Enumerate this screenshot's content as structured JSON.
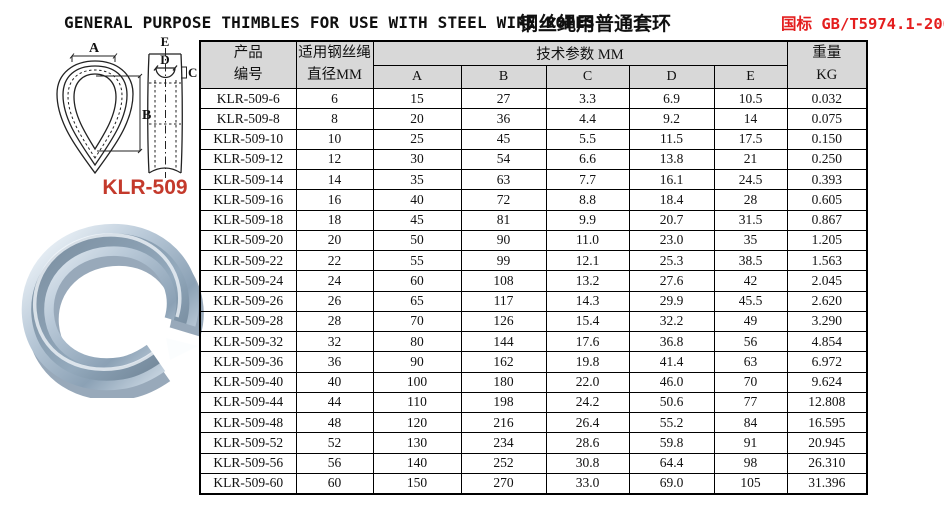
{
  "title": {
    "english": "GENERAL PURPOSE THIMBLES FOR USE WITH STEEL WIRE ROPES",
    "chinese": "钢丝绳用普通套环",
    "standard": "国标 GB/T5974.1-2006",
    "standard_color": "#e41e1e"
  },
  "figure": {
    "model_label": "KLR-509",
    "model_color": "#c43a2c",
    "dims": {
      "a": "A",
      "b": "B",
      "c": "C",
      "d": "D",
      "e": "E"
    }
  },
  "table": {
    "header": {
      "product_line1": "产品",
      "product_line2": "编号",
      "diameter_line1": "适用钢丝绳",
      "diameter_line2": "直径MM",
      "tech_params": "技术参数 MM",
      "param_cols": [
        "A",
        "B",
        "C",
        "D",
        "E"
      ],
      "weight_line1": "重量",
      "weight_line2": "KG",
      "header_bg": "#d8d8d8"
    },
    "rows": [
      [
        "KLR-509-6",
        "6",
        "15",
        "27",
        "3.3",
        "6.9",
        "10.5",
        "0.032"
      ],
      [
        "KLR-509-8",
        "8",
        "20",
        "36",
        "4.4",
        "9.2",
        "14",
        "0.075"
      ],
      [
        "KLR-509-10",
        "10",
        "25",
        "45",
        "5.5",
        "11.5",
        "17.5",
        "0.150"
      ],
      [
        "KLR-509-12",
        "12",
        "30",
        "54",
        "6.6",
        "13.8",
        "21",
        "0.250"
      ],
      [
        "KLR-509-14",
        "14",
        "35",
        "63",
        "7.7",
        "16.1",
        "24.5",
        "0.393"
      ],
      [
        "KLR-509-16",
        "16",
        "40",
        "72",
        "8.8",
        "18.4",
        "28",
        "0.605"
      ],
      [
        "KLR-509-18",
        "18",
        "45",
        "81",
        "9.9",
        "20.7",
        "31.5",
        "0.867"
      ],
      [
        "KLR-509-20",
        "20",
        "50",
        "90",
        "11.0",
        "23.0",
        "35",
        "1.205"
      ],
      [
        "KLR-509-22",
        "22",
        "55",
        "99",
        "12.1",
        "25.3",
        "38.5",
        "1.563"
      ],
      [
        "KLR-509-24",
        "24",
        "60",
        "108",
        "13.2",
        "27.6",
        "42",
        "2.045"
      ],
      [
        "KLR-509-26",
        "26",
        "65",
        "117",
        "14.3",
        "29.9",
        "45.5",
        "2.620"
      ],
      [
        "KLR-509-28",
        "28",
        "70",
        "126",
        "15.4",
        "32.2",
        "49",
        "3.290"
      ],
      [
        "KLR-509-32",
        "32",
        "80",
        "144",
        "17.6",
        "36.8",
        "56",
        "4.854"
      ],
      [
        "KLR-509-36",
        "36",
        "90",
        "162",
        "19.8",
        "41.4",
        "63",
        "6.972"
      ],
      [
        "KLR-509-40",
        "40",
        "100",
        "180",
        "22.0",
        "46.0",
        "70",
        "9.624"
      ],
      [
        "KLR-509-44",
        "44",
        "110",
        "198",
        "24.2",
        "50.6",
        "77",
        "12.808"
      ],
      [
        "KLR-509-48",
        "48",
        "120",
        "216",
        "26.4",
        "55.2",
        "84",
        "16.595"
      ],
      [
        "KLR-509-52",
        "52",
        "130",
        "234",
        "28.6",
        "59.8",
        "91",
        "20.945"
      ],
      [
        "KLR-509-56",
        "56",
        "140",
        "252",
        "30.8",
        "64.4",
        "98",
        "26.310"
      ],
      [
        "KLR-509-60",
        "60",
        "150",
        "270",
        "33.0",
        "69.0",
        "105",
        "31.396"
      ]
    ]
  }
}
